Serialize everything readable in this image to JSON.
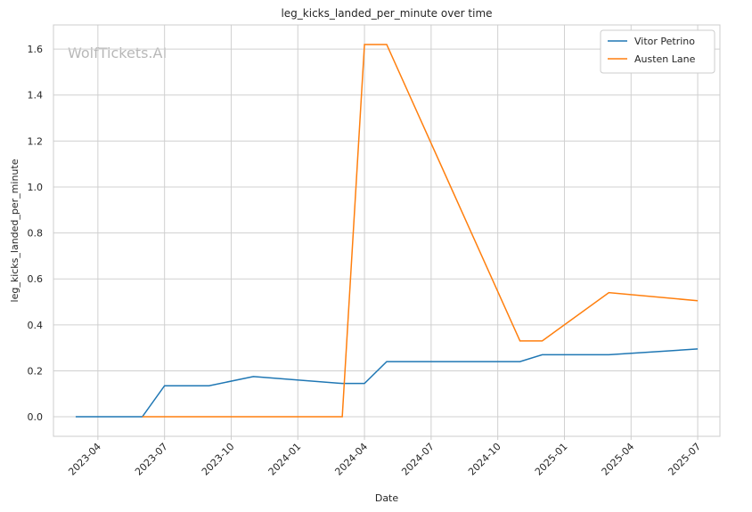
{
  "chart_data": {
    "type": "line",
    "title": "leg_kicks_landed_per_minute over time",
    "x_label": "Date",
    "y_label": "leg_kicks_landed_per_minute",
    "watermark": "WolfTickets.AI",
    "xlim": [
      "2023-02",
      "2025-08"
    ],
    "xticks": [
      "2023-04",
      "2023-07",
      "2023-10",
      "2024-01",
      "2024-04",
      "2024-07",
      "2024-10",
      "2025-01",
      "2025-04",
      "2025-07"
    ],
    "ylim": [
      -0.085,
      1.705
    ],
    "yticks": [
      {
        "value": 0,
        "label": "0.0"
      },
      0.2,
      0.4,
      0.6,
      0.8,
      {
        "value": 1,
        "label": "1.0"
      },
      1.2,
      1.4,
      1.6
    ],
    "grid": true,
    "legend": "upper right",
    "series": [
      {
        "name": "Vitor Petrino",
        "color": "#1f77b4",
        "x": [
          "2023-03",
          "2023-06",
          "2023-07",
          "2023-09",
          "2023-11",
          "2024-03",
          "2024-04",
          "2024-05",
          "2024-11",
          "2024-12",
          "2025-03",
          "2025-07"
        ],
        "values": [
          0,
          0,
          0.135,
          0.135,
          0.175,
          0.145,
          0.145,
          0.24,
          0.24,
          0.27,
          0.27,
          0.295
        ]
      },
      {
        "name": "Austen Lane",
        "color": "#ff7f0e",
        "x": [
          "2023-06",
          "2024-03",
          "2024-04",
          "2024-05",
          "2024-11",
          "2024-12",
          "2025-03",
          "2025-07"
        ],
        "values": [
          0,
          0,
          1.62,
          1.62,
          0.33,
          0.33,
          0.54,
          0.505
        ]
      }
    ]
  }
}
